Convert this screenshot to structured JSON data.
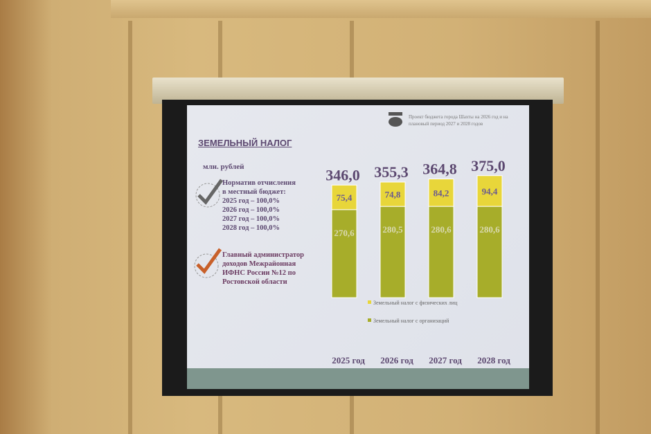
{
  "slide": {
    "header": "Проект бюджета города Шахты на 2026 год и на плановый период 2027 и 2028 годов",
    "title": "ЗЕМЕЛЬНЫЙ НАЛОГ",
    "unit": "млн. рублей",
    "note1": {
      "heading": [
        "Норматив отчисления",
        "в местный бюджет:"
      ],
      "lines": [
        "2025 год – 100,0%",
        "2026 год – 100,0%",
        "2027 год – 100,0%",
        "2028 год – 100,0%"
      ],
      "icon": "check-gray-icon"
    },
    "note2": {
      "lines": [
        "Главный администратор",
        "доходов Межрайонная",
        "ИФНС России №12 по",
        "Ростовской области"
      ],
      "icon": "check-orange-icon"
    }
  },
  "chart_data": {
    "type": "bar",
    "stacked": true,
    "categories": [
      "2025 год",
      "2026 год",
      "2027 год",
      "2028 год"
    ],
    "totals": [
      "346,0",
      "355,3",
      "364,8",
      "375,0"
    ],
    "series": [
      {
        "name": "Земельный налог с организаций",
        "values": [
          270.6,
          280.5,
          280.6,
          280.6
        ],
        "labels": [
          "270,6",
          "280,5",
          "280,6",
          "280,6"
        ],
        "color": "#a7ad2a"
      },
      {
        "name": "Земельный налог с физических лиц",
        "values": [
          75.4,
          74.8,
          84.2,
          94.4
        ],
        "labels": [
          "75,4",
          "74,8",
          "84,2",
          "94,4"
        ],
        "color": "#e8d63a"
      }
    ],
    "legend_order": [
      1,
      0
    ],
    "legend": "bottom"
  }
}
